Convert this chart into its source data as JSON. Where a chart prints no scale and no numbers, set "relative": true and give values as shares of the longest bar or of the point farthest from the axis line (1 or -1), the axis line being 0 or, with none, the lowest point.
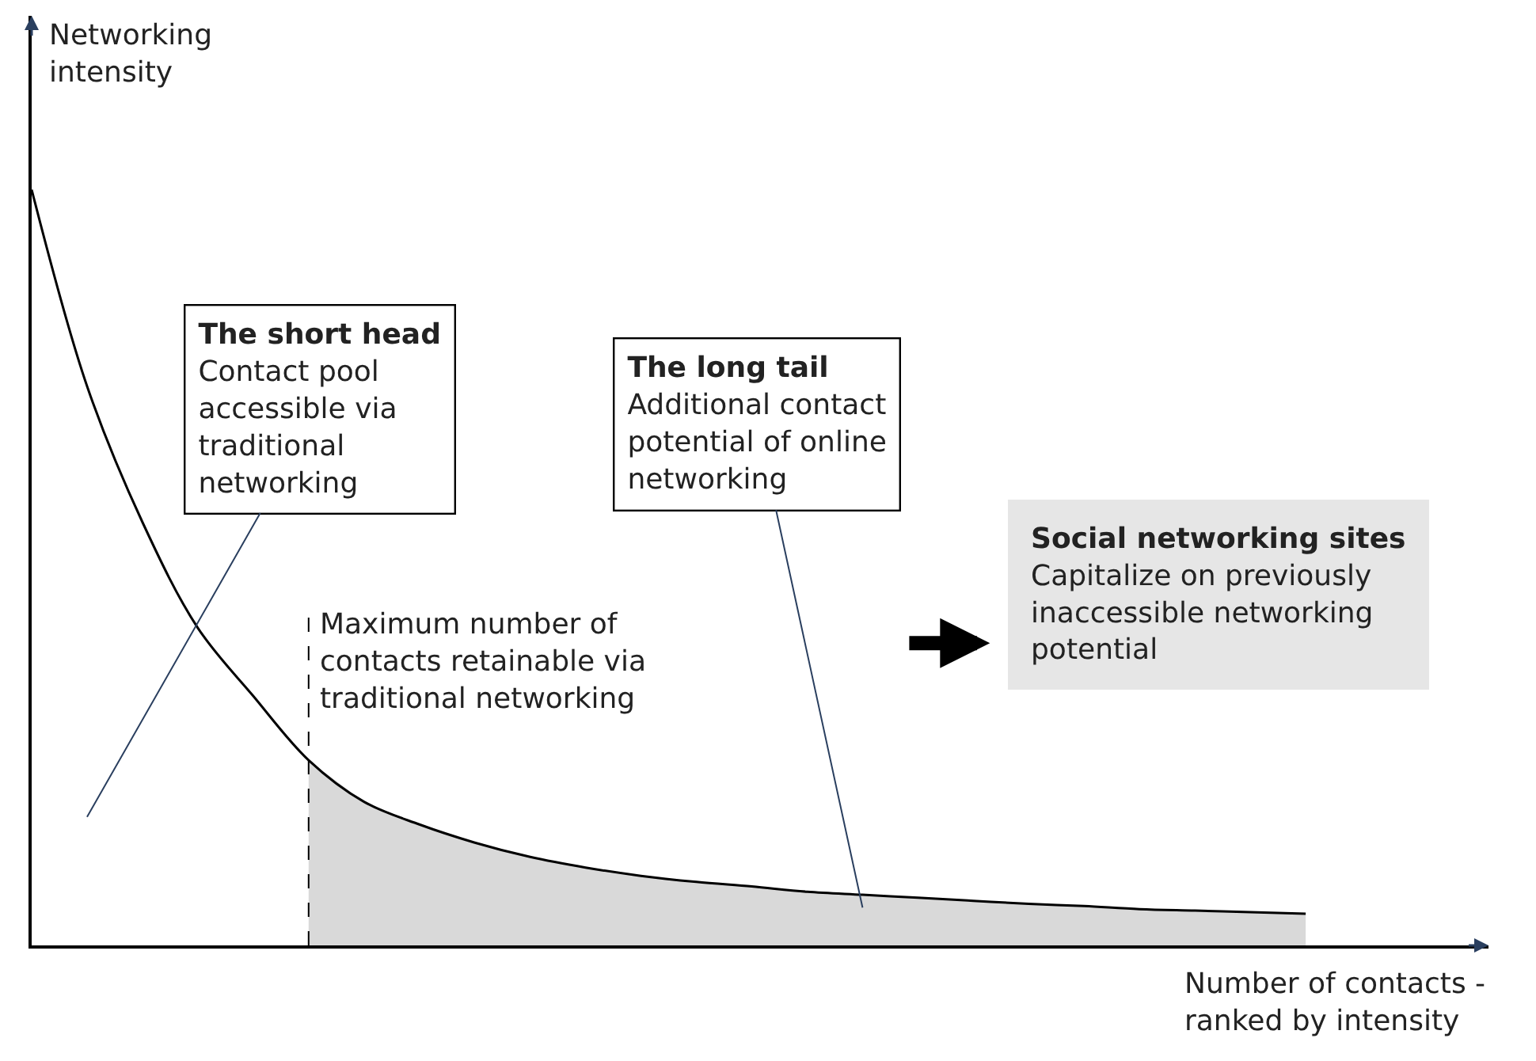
{
  "chart_data": {
    "type": "line",
    "relative": true,
    "xlabel": "Number of contacts -\nranked by intensity",
    "ylabel": "Networking\nintensity",
    "categories": [
      null,
      null,
      null,
      null,
      null,
      null,
      null,
      null,
      null,
      null,
      null,
      null,
      null,
      null,
      null,
      null,
      null,
      null,
      null,
      null,
      null,
      null,
      null,
      null
    ],
    "series": [
      {
        "type": "area",
        "color": "#d9d9d9",
        "values": [
          null,
          null,
          null,
          null,
          null,
          0.245,
          0.19,
          0.16,
          0.136,
          0.117,
          0.103,
          0.092,
          0.084,
          0.078,
          0.071,
          0.067,
          0.063,
          0.059,
          0.055,
          0.052,
          0.048,
          0.046,
          0.044,
          0.042
        ]
      },
      {
        "color": "#000000",
        "values": [
          1,
          0.74,
          0.56,
          0.42,
          0.33,
          0.245,
          0.19,
          0.16,
          0.136,
          0.117,
          0.103,
          0.092,
          0.084,
          0.078,
          0.071,
          0.067,
          0.063,
          0.059,
          0.055,
          0.052,
          0.048,
          0.046,
          0.044,
          0.042
        ]
      }
    ],
    "line_style": "solid",
    "annotations": [
      "The short head",
      "Contact pool\naccessible via\ntraditional\nnetworking",
      "The long tail",
      "Additional contact\npotential of online\nnetworking",
      "Maximum number of\ncontacts retainable via\ntraditional networking",
      "Social networking sites",
      "Capitalize on previously\ninaccessible networking\npotential"
    ],
    "legend": false,
    "marker": "none"
  }
}
